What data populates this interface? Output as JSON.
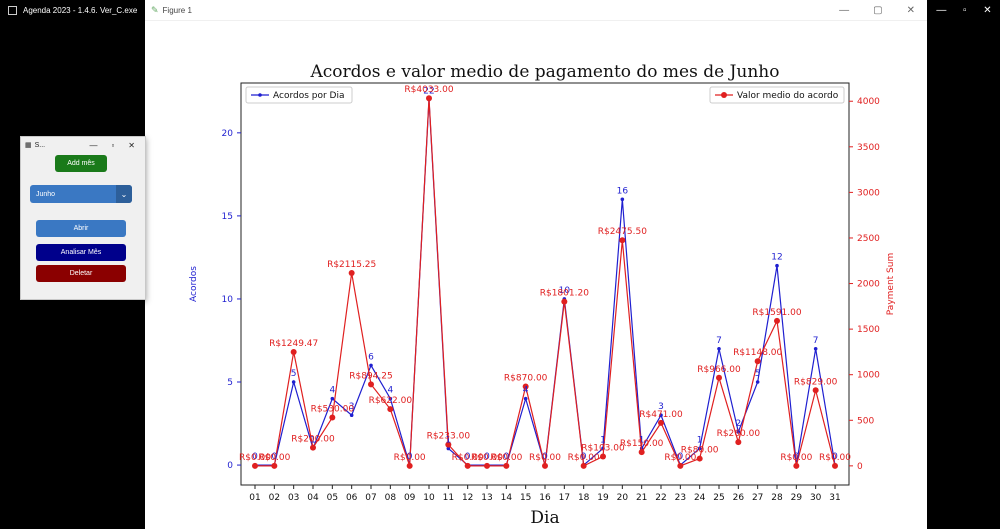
{
  "taskbar": {
    "app_title": "Agenda 2023 - 1.4.6. Ver_C.exe"
  },
  "figure_window": {
    "title": "Figure 1"
  },
  "side_window": {
    "title": "S...",
    "add_button": "Add mês",
    "month_select": {
      "value": "Junho"
    },
    "open_button": "Abrir",
    "analyze_button": "Analisar Mês",
    "delete_button": "Deletar"
  },
  "colors": {
    "blue": "#1f1fd0",
    "red": "#e02020",
    "green": "#1a7a1a",
    "select": "#3a78c3",
    "navy": "#00008b",
    "darkred": "#8b0000"
  },
  "chart_data": {
    "type": "line",
    "title": "Acordos e valor medio de pagamento do mes de Junho",
    "xlabel": "Dia",
    "ylabel_left": "Acordos",
    "ylabel_right": "Payment Sum",
    "categories": [
      "01",
      "02",
      "03",
      "04",
      "05",
      "06",
      "07",
      "08",
      "09",
      "10",
      "11",
      "12",
      "13",
      "14",
      "15",
      "16",
      "17",
      "18",
      "19",
      "20",
      "21",
      "22",
      "23",
      "24",
      "25",
      "26",
      "27",
      "28",
      "29",
      "30",
      "31"
    ],
    "ylim_left": [
      -1.2,
      23
    ],
    "ylim_right": [
      -210,
      4200
    ],
    "yticks_left": [
      0,
      5,
      10,
      15,
      20
    ],
    "yticks_right": [
      0,
      500,
      1000,
      1500,
      2000,
      2500,
      3000,
      3500,
      4000
    ],
    "legend_left": "Acordos por Dia",
    "legend_right": "Valor medio do acordo",
    "legend_left_position": "top-left",
    "legend_right_position": "top-right",
    "series": [
      {
        "name": "Acordos por Dia",
        "axis": "left",
        "values": [
          0,
          0,
          5,
          1,
          4,
          3,
          6,
          4,
          0,
          22,
          1,
          0,
          0,
          0,
          4,
          0,
          10,
          0,
          1,
          16,
          1,
          3,
          0,
          1,
          7,
          2,
          5,
          12,
          0,
          7,
          0
        ],
        "labels": [
          "0",
          "0",
          "5",
          "1",
          "4",
          "3",
          "6",
          "4",
          "0",
          "22",
          "1",
          "0",
          "0",
          "0",
          "4",
          "0",
          "10",
          "0",
          "1",
          "16",
          "1",
          "3",
          "0",
          "1",
          "7",
          "2",
          "5",
          "12",
          "0",
          "7",
          "0"
        ]
      },
      {
        "name": "Valor medio do acordo",
        "axis": "right",
        "values": [
          0,
          0,
          1249.47,
          200,
          530,
          2115.25,
          894.25,
          622,
          0,
          4033,
          233,
          0,
          0,
          0,
          870,
          0,
          1801.2,
          0,
          103,
          2475.5,
          150,
          471,
          0,
          80,
          966,
          260,
          1148,
          1591,
          0,
          829,
          0
        ],
        "labels": [
          "R$0.00",
          "R$0.00",
          "R$1249.47",
          "R$200.00",
          "R$530.00",
          "R$2115.25",
          "R$894.25",
          "R$622.00",
          "R$0.00",
          "R$4033.00",
          "R$233.00",
          "R$0.00",
          "R$0.00",
          "R$0.00",
          "R$870.00",
          "R$0.00",
          "R$1801.20",
          "R$0.00",
          "R$103.00",
          "R$2475.50",
          "R$150.00",
          "R$471.00",
          "R$0.00",
          "R$80.00",
          "R$966.00",
          "R$260.00",
          "R$1148.00",
          "R$1591.00",
          "R$0.00",
          "R$829.00",
          "R$0.00"
        ]
      }
    ]
  }
}
